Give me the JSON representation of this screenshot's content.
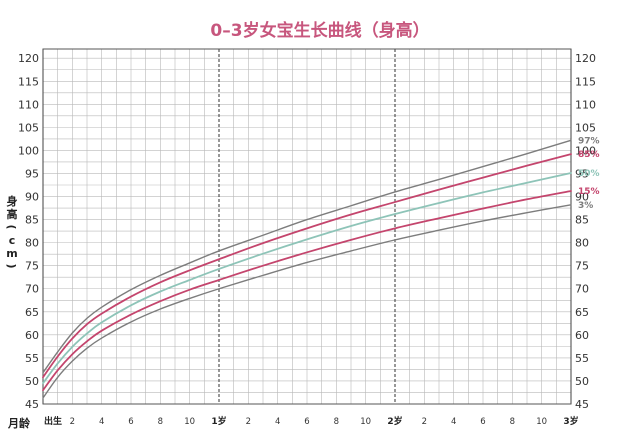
{
  "chart_data": {
    "type": "line",
    "title": "0–3岁女宝生长曲线（身高）",
    "ylabel": "身高（cm）",
    "ylabel_chars": [
      "身",
      "高",
      "(",
      "c",
      "m",
      ")"
    ],
    "xlabel": "月龄",
    "xlim": [
      0,
      36
    ],
    "ylim": [
      45,
      122
    ],
    "y_ticks": [
      45,
      50,
      55,
      60,
      65,
      70,
      75,
      80,
      85,
      90,
      95,
      100,
      105,
      110,
      115,
      120
    ],
    "x_tick_labels": [
      {
        "month": 0,
        "label": "出生"
      },
      {
        "month": 2,
        "label": "2"
      },
      {
        "month": 4,
        "label": "4"
      },
      {
        "month": 6,
        "label": "6"
      },
      {
        "month": 8,
        "label": "8"
      },
      {
        "month": 10,
        "label": "10"
      },
      {
        "month": 12,
        "label": "1岁"
      },
      {
        "month": 14,
        "label": "2"
      },
      {
        "month": 16,
        "label": "4"
      },
      {
        "month": 18,
        "label": "6"
      },
      {
        "month": 20,
        "label": "8"
      },
      {
        "month": 22,
        "label": "10"
      },
      {
        "month": 24,
        "label": "2岁"
      },
      {
        "month": 26,
        "label": "2"
      },
      {
        "month": 28,
        "label": "4"
      },
      {
        "month": 30,
        "label": "6"
      },
      {
        "month": 32,
        "label": "8"
      },
      {
        "month": 34,
        "label": "10"
      },
      {
        "month": 36,
        "label": "3岁"
      }
    ],
    "grid": true,
    "x": [
      0,
      1,
      2,
      3,
      4,
      6,
      8,
      10,
      12,
      15,
      18,
      21,
      24,
      27,
      30,
      33,
      36
    ],
    "series": [
      {
        "name": "97%",
        "color": "#7d7d7d",
        "values": [
          51.8,
          56.3,
          60.4,
          63.6,
          66.0,
          69.8,
          72.9,
          75.6,
          78.2,
          81.6,
          85.0,
          88.0,
          91.0,
          93.7,
          96.5,
          99.3,
          102.2
        ]
      },
      {
        "name": "85%",
        "color": "#c4456d",
        "values": [
          50.8,
          55.3,
          59.2,
          62.3,
          64.6,
          68.3,
          71.4,
          74.0,
          76.4,
          79.9,
          83.1,
          86.1,
          88.8,
          91.5,
          94.1,
          96.7,
          99.2
        ]
      },
      {
        "name": "50%",
        "color": "#8ec4b8",
        "values": [
          49.5,
          53.8,
          57.4,
          60.3,
          62.7,
          66.4,
          69.4,
          71.9,
          74.3,
          77.6,
          80.7,
          83.6,
          86.2,
          88.6,
          90.9,
          93.0,
          95.1
        ]
      },
      {
        "name": "15%",
        "color": "#c4456d",
        "values": [
          48.0,
          52.3,
          55.8,
          58.6,
          60.9,
          64.4,
          67.3,
          69.8,
          71.9,
          75.0,
          77.9,
          80.6,
          83.1,
          85.3,
          87.4,
          89.4,
          91.2
        ]
      },
      {
        "name": "3%",
        "color": "#7d7d7d",
        "values": [
          46.3,
          50.8,
          54.3,
          57.1,
          59.3,
          62.8,
          65.6,
          67.9,
          70.0,
          72.9,
          75.7,
          78.2,
          80.6,
          82.7,
          84.7,
          86.5,
          88.2
        ]
      }
    ]
  }
}
